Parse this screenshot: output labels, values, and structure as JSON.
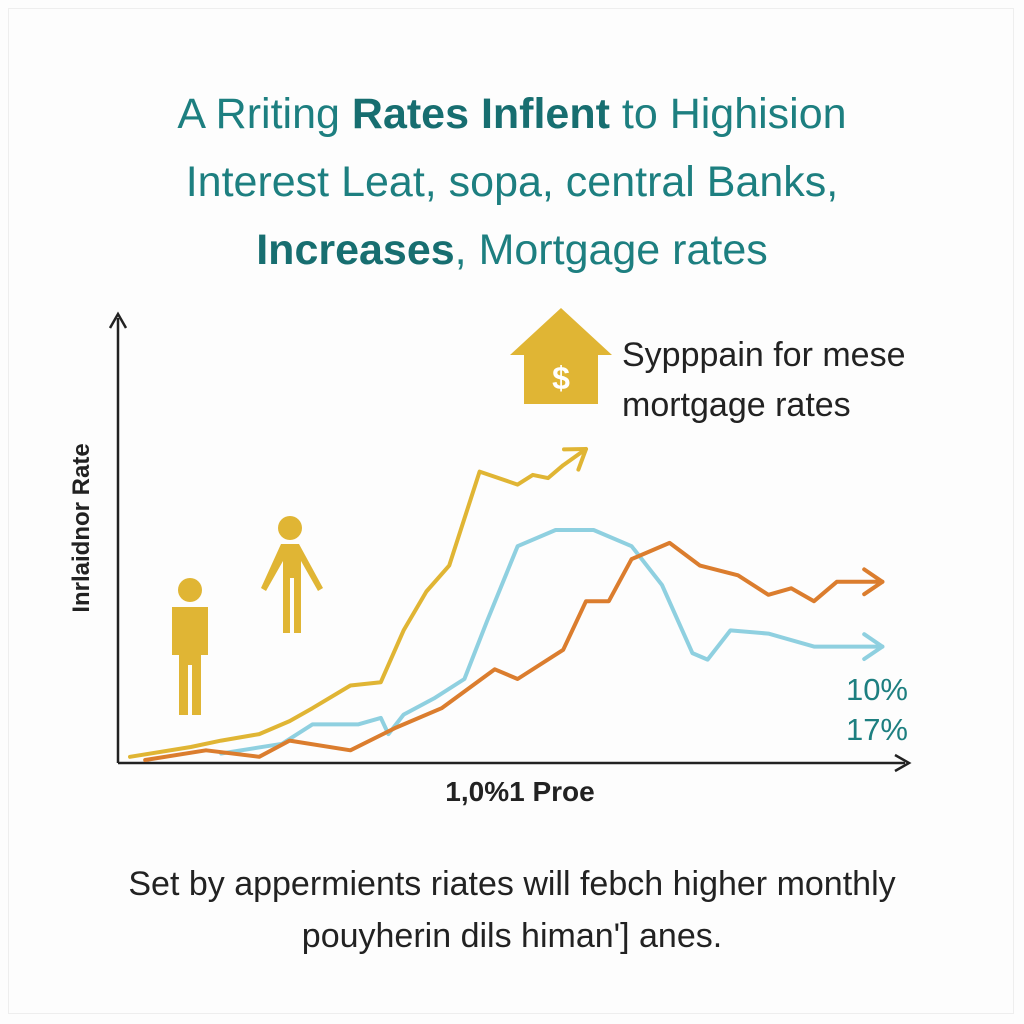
{
  "title": {
    "line1_pre": "A Rriting ",
    "line1_bold": "Rates Inflent",
    "line1_post": " to Highision",
    "line2": "Interest Leat, sopa, central Banks,",
    "line3_bold": "Increases",
    "line3_post": ", Mortgage rates"
  },
  "callout": {
    "line1": "Sypppain for mese",
    "line2": "mortgage rates",
    "icon": "house-dollar-icon",
    "symbol": "$"
  },
  "rate_labels": {
    "first": "10%",
    "second": "17%"
  },
  "caption": {
    "line1": "Set by appermients riates will febch higher monthly",
    "line2": "pouyherin dils himan'] anes."
  },
  "colors": {
    "title": "#1d7f80",
    "gold": "#e0b534",
    "blue": "#8fd0e0",
    "orange": "#db7d2e",
    "axis": "#222222",
    "icon": "#e0b534"
  },
  "chart_data": {
    "type": "line",
    "xlabel": "1,0%1 Proe",
    "ylabel": "Inrlaidnor Rate",
    "xlim": [
      0,
      100
    ],
    "ylim": [
      0,
      100
    ],
    "grid": false,
    "series": [
      {
        "color": "#e0b534",
        "x": [
          0,
          8,
          12,
          17,
          21,
          24,
          29,
          33,
          36,
          39,
          42,
          46,
          51,
          53,
          55,
          57,
          60
        ],
        "y": [
          1,
          4,
          6,
          8,
          12,
          16,
          23,
          24,
          40,
          52,
          60,
          89,
          85,
          88,
          87,
          91,
          96
        ]
      },
      {
        "color": "#8fd0e0",
        "x": [
          12,
          20,
          24,
          30,
          33,
          34,
          36,
          40,
          44,
          47,
          51,
          56,
          61,
          66,
          70,
          74,
          76,
          79,
          84,
          90,
          99
        ],
        "y": [
          2,
          5,
          11,
          11,
          13,
          8,
          14,
          19,
          25,
          43,
          66,
          71,
          71,
          66,
          54,
          33,
          31,
          40,
          39,
          35,
          35
        ]
      },
      {
        "color": "#db7d2e",
        "x": [
          2,
          10,
          17,
          21,
          29,
          35,
          41,
          48,
          51,
          57,
          60,
          63,
          66,
          71,
          75,
          80,
          84,
          87,
          90,
          93,
          99
        ],
        "y": [
          0,
          3,
          1,
          6,
          3,
          10,
          16,
          28,
          25,
          34,
          49,
          49,
          62,
          67,
          60,
          57,
          51,
          53,
          49,
          55,
          55
        ]
      }
    ]
  }
}
